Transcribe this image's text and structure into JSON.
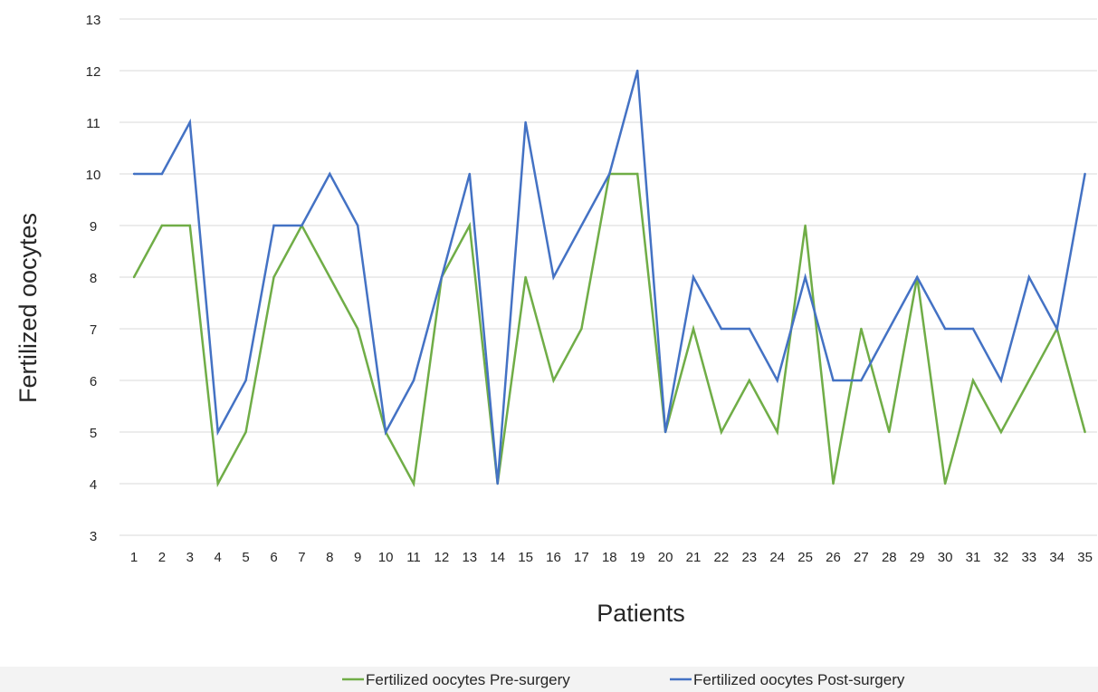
{
  "chart_data": {
    "type": "line",
    "title": "",
    "xlabel": "Patients",
    "ylabel": "Fertilized oocytes",
    "ylim": [
      3,
      13
    ],
    "yticks": [
      3,
      4,
      5,
      6,
      7,
      8,
      9,
      10,
      11,
      12,
      13
    ],
    "grid": "horizontal",
    "legend_position": "bottom",
    "categories": [
      "1",
      "2",
      "3",
      "4",
      "5",
      "6",
      "7",
      "8",
      "9",
      "10",
      "11",
      "12",
      "13",
      "14",
      "15",
      "16",
      "17",
      "18",
      "19",
      "20",
      "21",
      "22",
      "23",
      "24",
      "25",
      "26",
      "27",
      "28",
      "29",
      "30",
      "31",
      "32",
      "33",
      "34",
      "35"
    ],
    "series": [
      {
        "name": "Fertilized oocytes Pre-surgery",
        "color": "#70ad47",
        "values": [
          8,
          9,
          9,
          4,
          5,
          8,
          9,
          8,
          7,
          5,
          4,
          8,
          9,
          4,
          8,
          6,
          7,
          10,
          10,
          5,
          7,
          5,
          6,
          5,
          9,
          4,
          7,
          5,
          8,
          4,
          6,
          5,
          6,
          7,
          5
        ]
      },
      {
        "name": "Fertilized oocytes Post-surgery",
        "color": "#4472c4",
        "values": [
          10,
          10,
          11,
          5,
          6,
          9,
          9,
          10,
          9,
          5,
          6,
          8,
          10,
          4,
          11,
          8,
          9,
          10,
          12,
          5,
          8,
          7,
          7,
          6,
          8,
          6,
          6,
          7,
          8,
          7,
          7,
          6,
          8,
          7,
          10
        ]
      }
    ]
  },
  "colors": {
    "gridline": "#d9d9d9",
    "tick_text": "#262626",
    "axis_title": "#262626",
    "legend_band": "#f3f3f3"
  }
}
